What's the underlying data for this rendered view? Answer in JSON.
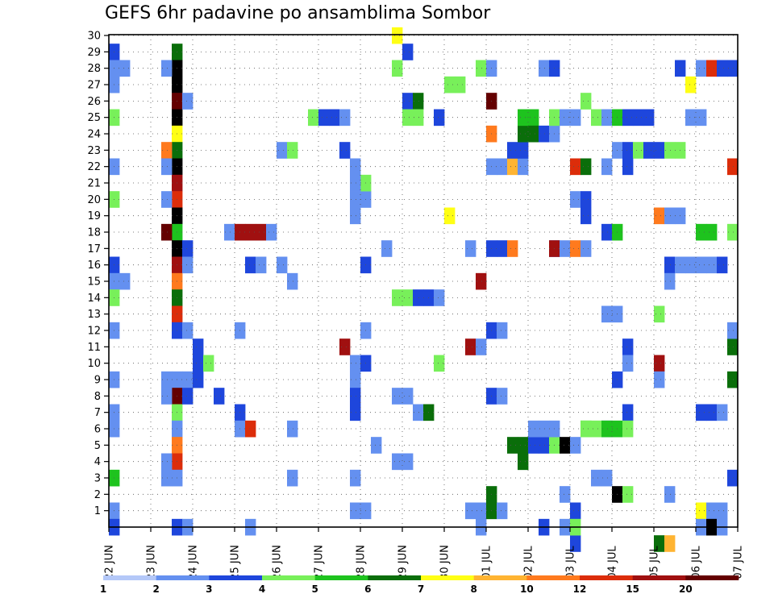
{
  "chart_data": {
    "type": "heatmap",
    "title": "GEFS 6hr padavine po ansamblima Sombor",
    "x_tick_labels": [
      "22 JUN",
      "23 JUN",
      "24 JUN",
      "25 JUN",
      "26 JUN",
      "27 JUN",
      "28 JUN",
      "29 JUN",
      "30 JUN",
      "01 JUL",
      "02 JUL",
      "03 JUL",
      "04 JUL",
      "05 JUL",
      "06 JUL",
      "07 JUL"
    ],
    "y_tick_labels": [
      "1",
      "2",
      "3",
      "4",
      "5",
      "6",
      "7",
      "8",
      "9",
      "10",
      "11",
      "12",
      "13",
      "14",
      "15",
      "16",
      "17",
      "18",
      "19",
      "20",
      "21",
      "22",
      "23",
      "24",
      "25",
      "26",
      "27",
      "28",
      "29",
      "30"
    ],
    "x_range_steps": [
      0,
      60
    ],
    "ensemble_range": [
      0,
      30
    ],
    "grid": true,
    "colorbar": {
      "levels": [
        "1",
        "2",
        "3",
        "4",
        "5",
        "6",
        "7",
        "8",
        "10",
        "12",
        "15",
        "20"
      ],
      "colors": [
        "#b4c8f8",
        "#6490f0",
        "#1e46dc",
        "#78f05a",
        "#1ec31e",
        "#0a6e0a",
        "#ffff14",
        "#ffb432",
        "#ff7a1e",
        "#dc2d0a",
        "#a01010",
        "#640000"
      ]
    },
    "cells": [
      [
        0,
        29,
        2
      ],
      [
        0,
        28,
        1
      ],
      [
        1,
        28,
        1
      ],
      [
        0,
        27,
        1
      ],
      [
        0,
        25,
        3
      ],
      [
        0,
        22,
        1
      ],
      [
        0,
        20,
        3
      ],
      [
        0,
        16,
        2
      ],
      [
        0,
        15,
        1
      ],
      [
        1,
        15,
        1
      ],
      [
        0,
        14,
        3
      ],
      [
        0,
        12,
        1
      ],
      [
        0,
        9,
        1
      ],
      [
        0,
        7,
        1
      ],
      [
        0,
        6,
        1
      ],
      [
        0,
        3,
        4
      ],
      [
        0,
        1,
        1
      ],
      [
        0,
        0,
        2
      ],
      [
        6,
        29,
        5
      ],
      [
        6,
        28,
        12
      ],
      [
        6,
        27,
        12
      ],
      [
        6,
        26,
        11
      ],
      [
        6,
        25,
        12
      ],
      [
        6,
        24,
        6
      ],
      [
        6,
        23,
        5
      ],
      [
        6,
        22,
        12
      ],
      [
        6,
        21,
        10
      ],
      [
        6,
        20,
        9
      ],
      [
        6,
        19,
        12
      ],
      [
        6,
        18,
        4
      ],
      [
        6,
        17,
        12
      ],
      [
        6,
        16,
        10
      ],
      [
        6,
        15,
        8
      ],
      [
        6,
        14,
        5
      ],
      [
        6,
        13,
        9
      ],
      [
        6,
        12,
        2
      ],
      [
        6,
        9,
        1
      ],
      [
        6,
        8,
        11
      ],
      [
        6,
        7,
        3
      ],
      [
        6,
        6,
        1
      ],
      [
        6,
        5,
        8
      ],
      [
        6,
        4,
        9
      ],
      [
        6,
        3,
        1
      ],
      [
        6,
        0,
        2
      ],
      [
        5,
        28,
        1
      ],
      [
        5,
        23,
        8
      ],
      [
        5,
        22,
        1
      ],
      [
        5,
        20,
        1
      ],
      [
        5,
        9,
        1
      ],
      [
        5,
        8,
        1
      ],
      [
        5,
        4,
        1
      ],
      [
        5,
        3,
        1
      ],
      [
        5,
        18,
        11
      ],
      [
        7,
        26,
        1
      ],
      [
        7,
        17,
        2
      ],
      [
        7,
        16,
        1
      ],
      [
        7,
        12,
        1
      ],
      [
        7,
        9,
        1
      ],
      [
        7,
        8,
        2
      ],
      [
        7,
        0,
        1
      ],
      [
        8,
        11,
        2
      ],
      [
        8,
        10,
        2
      ],
      [
        8,
        9,
        2
      ],
      [
        9,
        10,
        3
      ],
      [
        10,
        8,
        2
      ],
      [
        11,
        18,
        1
      ],
      [
        12,
        18,
        10
      ],
      [
        13,
        18,
        10
      ],
      [
        14,
        18,
        10
      ],
      [
        15,
        18,
        1
      ],
      [
        12,
        7,
        2
      ],
      [
        12,
        6,
        1
      ],
      [
        13,
        6,
        9
      ],
      [
        12,
        12,
        1
      ],
      [
        13,
        16,
        2
      ],
      [
        14,
        16,
        1
      ],
      [
        13,
        0,
        1
      ],
      [
        16,
        16,
        1
      ],
      [
        17,
        15,
        1
      ],
      [
        17,
        3,
        1
      ],
      [
        17,
        6,
        1
      ],
      [
        16,
        23,
        1
      ],
      [
        17,
        23,
        3
      ],
      [
        19,
        25,
        3
      ],
      [
        20,
        25,
        2
      ],
      [
        21,
        25,
        2
      ],
      [
        22,
        25,
        1
      ],
      [
        22,
        23,
        2
      ],
      [
        23,
        20,
        1
      ],
      [
        24,
        20,
        1
      ],
      [
        24,
        21,
        3
      ],
      [
        24,
        12,
        1
      ],
      [
        23,
        22,
        1
      ],
      [
        23,
        21,
        1
      ],
      [
        23,
        19,
        1
      ],
      [
        23,
        10,
        1
      ],
      [
        23,
        9,
        1
      ],
      [
        23,
        8,
        2
      ],
      [
        23,
        7,
        2
      ],
      [
        23,
        3,
        1
      ],
      [
        23,
        1,
        1
      ],
      [
        24,
        16,
        2
      ],
      [
        24,
        10,
        2
      ],
      [
        24,
        1,
        1
      ],
      [
        22,
        11,
        10
      ],
      [
        27,
        28,
        3
      ],
      [
        28,
        29,
        2
      ],
      [
        28,
        26,
        2
      ],
      [
        29,
        26,
        5
      ],
      [
        26,
        17,
        1
      ],
      [
        27,
        14,
        3
      ],
      [
        28,
        14,
        3
      ],
      [
        29,
        14,
        2
      ],
      [
        30,
        14,
        2
      ],
      [
        31,
        14,
        1
      ],
      [
        27,
        8,
        1
      ],
      [
        28,
        8,
        1
      ],
      [
        29,
        7,
        1
      ],
      [
        30,
        7,
        5
      ],
      [
        27,
        4,
        1
      ],
      [
        28,
        4,
        1
      ],
      [
        25,
        5,
        1
      ],
      [
        27,
        30,
        6
      ],
      [
        32,
        19,
        6
      ],
      [
        31,
        10,
        3
      ],
      [
        28,
        25,
        3
      ],
      [
        29,
        25,
        3
      ],
      [
        31,
        25,
        2
      ],
      [
        32,
        27,
        3
      ],
      [
        33,
        27,
        3
      ],
      [
        34,
        1,
        1
      ],
      [
        35,
        0,
        1
      ],
      [
        35,
        1,
        1
      ],
      [
        34,
        11,
        10
      ],
      [
        35,
        11,
        1
      ],
      [
        35,
        15,
        10
      ],
      [
        34,
        17,
        1
      ],
      [
        36,
        24,
        8
      ],
      [
        36,
        26,
        11
      ],
      [
        35,
        28,
        3
      ],
      [
        36,
        28,
        1
      ],
      [
        36,
        22,
        1
      ],
      [
        36,
        17,
        2
      ],
      [
        37,
        17,
        2
      ],
      [
        36,
        12,
        2
      ],
      [
        37,
        12,
        1
      ],
      [
        36,
        8,
        2
      ],
      [
        37,
        8,
        1
      ],
      [
        36,
        1,
        5
      ],
      [
        37,
        1,
        1
      ],
      [
        36,
        2,
        5
      ],
      [
        37,
        22,
        1
      ],
      [
        38,
        22,
        7
      ],
      [
        39,
        22,
        1
      ],
      [
        38,
        23,
        2
      ],
      [
        39,
        23,
        2
      ],
      [
        39,
        24,
        5
      ],
      [
        38,
        17,
        8
      ],
      [
        38,
        5,
        5
      ],
      [
        39,
        5,
        5
      ],
      [
        39,
        4,
        5
      ],
      [
        40,
        5,
        2
      ],
      [
        41,
        5,
        2
      ],
      [
        42,
        5,
        3
      ],
      [
        40,
        6,
        1
      ],
      [
        41,
        6,
        1
      ],
      [
        42,
        6,
        1
      ],
      [
        43,
        5,
        12
      ],
      [
        44,
        5,
        1
      ],
      [
        39,
        25,
        4
      ],
      [
        40,
        25,
        4
      ],
      [
        40,
        24,
        5
      ],
      [
        41,
        24,
        2
      ],
      [
        42,
        24,
        1
      ],
      [
        41,
        28,
        1
      ],
      [
        42,
        28,
        2
      ],
      [
        41,
        0,
        2
      ],
      [
        42,
        17,
        2
      ],
      [
        42,
        17,
        10
      ],
      [
        43,
        17,
        1
      ],
      [
        44,
        17,
        8
      ],
      [
        43,
        2,
        1
      ],
      [
        43,
        0,
        1
      ],
      [
        44,
        -1,
        2
      ],
      [
        42,
        25,
        3
      ],
      [
        43,
        25,
        1
      ],
      [
        44,
        25,
        1
      ],
      [
        45,
        26,
        3
      ],
      [
        44,
        1,
        2
      ],
      [
        44,
        0,
        3
      ],
      [
        44,
        22,
        9
      ],
      [
        45,
        22,
        5
      ],
      [
        44,
        20,
        1
      ],
      [
        45,
        20,
        2
      ],
      [
        45,
        19,
        2
      ],
      [
        45,
        17,
        1
      ],
      [
        45,
        6,
        3
      ],
      [
        45,
        6,
        3
      ],
      [
        46,
        25,
        3
      ],
      [
        47,
        25,
        1
      ],
      [
        47,
        22,
        1
      ],
      [
        47,
        18,
        2
      ],
      [
        48,
        18,
        4
      ],
      [
        47,
        13,
        1
      ],
      [
        48,
        13,
        1
      ],
      [
        47,
        6,
        1
      ],
      [
        46,
        3,
        1
      ],
      [
        47,
        3,
        1
      ],
      [
        46,
        6,
        3
      ],
      [
        47,
        6,
        4
      ],
      [
        48,
        25,
        4
      ],
      [
        49,
        25,
        2
      ],
      [
        50,
        25,
        2
      ],
      [
        51,
        25,
        2
      ],
      [
        48,
        23,
        1
      ],
      [
        49,
        23,
        2
      ],
      [
        50,
        23,
        3
      ],
      [
        49,
        22,
        2
      ],
      [
        49,
        11,
        2
      ],
      [
        49,
        10,
        1
      ],
      [
        48,
        9,
        2
      ],
      [
        49,
        7,
        2
      ],
      [
        48,
        6,
        4
      ],
      [
        49,
        6,
        3
      ],
      [
        48,
        2,
        12
      ],
      [
        49,
        2,
        3
      ],
      [
        51,
        23,
        2
      ],
      [
        52,
        23,
        2
      ],
      [
        53,
        23,
        3
      ],
      [
        54,
        23,
        3
      ],
      [
        52,
        19,
        8
      ],
      [
        53,
        19,
        1
      ],
      [
        54,
        19,
        1
      ],
      [
        53,
        16,
        2
      ],
      [
        54,
        16,
        1
      ],
      [
        53,
        15,
        1
      ],
      [
        52,
        13,
        3
      ],
      [
        52,
        10,
        10
      ],
      [
        52,
        9,
        1
      ],
      [
        53,
        2,
        1
      ],
      [
        52,
        -1,
        5
      ],
      [
        53,
        -1,
        7
      ],
      [
        54,
        28,
        2
      ],
      [
        55,
        27,
        6
      ],
      [
        56,
        28,
        1
      ],
      [
        57,
        28,
        9
      ],
      [
        58,
        28,
        2
      ],
      [
        55,
        25,
        1
      ],
      [
        56,
        25,
        1
      ],
      [
        56,
        18,
        4
      ],
      [
        57,
        18,
        4
      ],
      [
        55,
        16,
        1
      ],
      [
        56,
        16,
        1
      ],
      [
        57,
        16,
        1
      ],
      [
        58,
        16,
        2
      ],
      [
        56,
        7,
        2
      ],
      [
        57,
        7,
        2
      ],
      [
        58,
        7,
        1
      ],
      [
        56,
        1,
        6
      ],
      [
        57,
        1,
        1
      ],
      [
        56,
        0,
        1
      ],
      [
        57,
        0,
        12
      ],
      [
        58,
        1,
        1
      ],
      [
        58,
        0,
        1
      ],
      [
        59,
        28,
        2
      ],
      [
        59,
        22,
        9
      ],
      [
        59,
        18,
        3
      ],
      [
        59,
        11,
        5
      ],
      [
        59,
        9,
        5
      ],
      [
        59,
        3,
        2
      ],
      [
        59,
        12,
        1
      ]
    ]
  }
}
